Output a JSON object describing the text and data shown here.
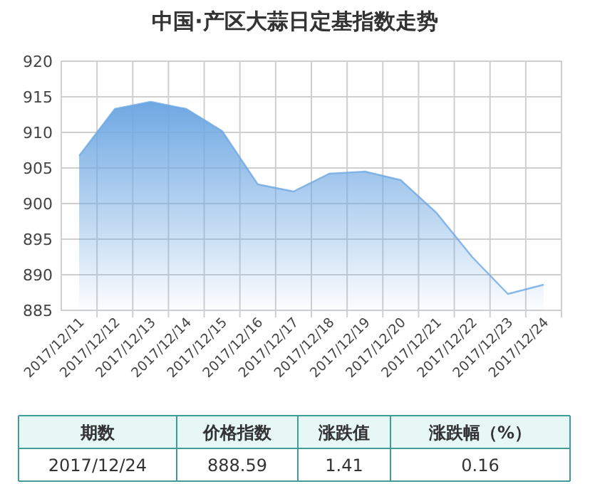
{
  "chart_data": {
    "type": "area",
    "title": "中国·产区大蒜日定基指数走势",
    "categories": [
      "2017/12/11",
      "2017/12/12",
      "2017/12/13",
      "2017/12/14",
      "2017/12/15",
      "2017/12/16",
      "2017/12/17",
      "2017/12/18",
      "2017/12/19",
      "2017/12/20",
      "2017/12/21",
      "2017/12/22",
      "2017/12/23",
      "2017/12/24"
    ],
    "series": [
      {
        "color": "#6ea8e2",
        "values": [
          906.7,
          913.3,
          914.3,
          913.3,
          910.2,
          902.7,
          901.7,
          904.2,
          904.5,
          903.3,
          898.7,
          892.5,
          887.3,
          888.6
        ]
      }
    ],
    "ylim": [
      885,
      920
    ],
    "yticks": [
      885,
      890,
      895,
      900,
      905,
      910,
      915,
      920
    ],
    "grid": true,
    "annotations": [
      "期数",
      "价格指数",
      "涨跌值",
      "涨跌幅（%）",
      "2017/12/24",
      "888.59",
      "1.41",
      "0.16"
    ]
  }
}
